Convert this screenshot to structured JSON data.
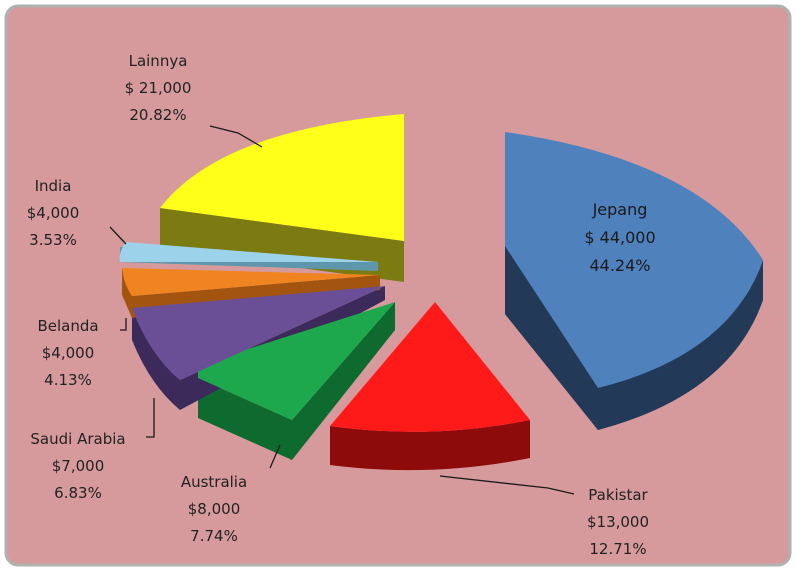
{
  "colors": {
    "background": "#d69a9d",
    "frame": "#b1b1b1"
  },
  "chart_data": {
    "type": "pie",
    "style": "3d-exploded",
    "title": "",
    "slices": [
      {
        "name": "Jepang",
        "amount_label": "$ 44,000",
        "percent_label": "44.24%",
        "value": 44.24,
        "color": "#4f81bd",
        "side_color": "#223a58"
      },
      {
        "name": "Pakistar",
        "amount_label": "$13,000",
        "percent_label": "12.71%",
        "value": 12.71,
        "color": "#ff1a1a",
        "side_color": "#8e0b0b"
      },
      {
        "name": "Australia",
        "amount_label": "$8,000",
        "percent_label": "7.74%",
        "value": 7.74,
        "color": "#1ea84e",
        "side_color": "#0f6a30"
      },
      {
        "name": "Saudi Arabia",
        "amount_label": "$7,000",
        "percent_label": "6.83%",
        "value": 6.83,
        "color": "#6a4f96",
        "side_color": "#3b2a5a"
      },
      {
        "name": "Belanda",
        "amount_label": "$4,000",
        "percent_label": "4.13%",
        "value": 4.13,
        "color": "#f08420",
        "side_color": "#a35510"
      },
      {
        "name": "India",
        "amount_label": "$4,000",
        "percent_label": "3.53%",
        "value": 3.53,
        "color": "#9cd3ea",
        "side_color": "#5e97ab"
      },
      {
        "name": "Lainnya",
        "amount_label": "$ 21,000",
        "percent_label": "20.82%",
        "value": 20.82,
        "color": "#ffff1a",
        "side_color": "#7b7b12"
      }
    ]
  }
}
